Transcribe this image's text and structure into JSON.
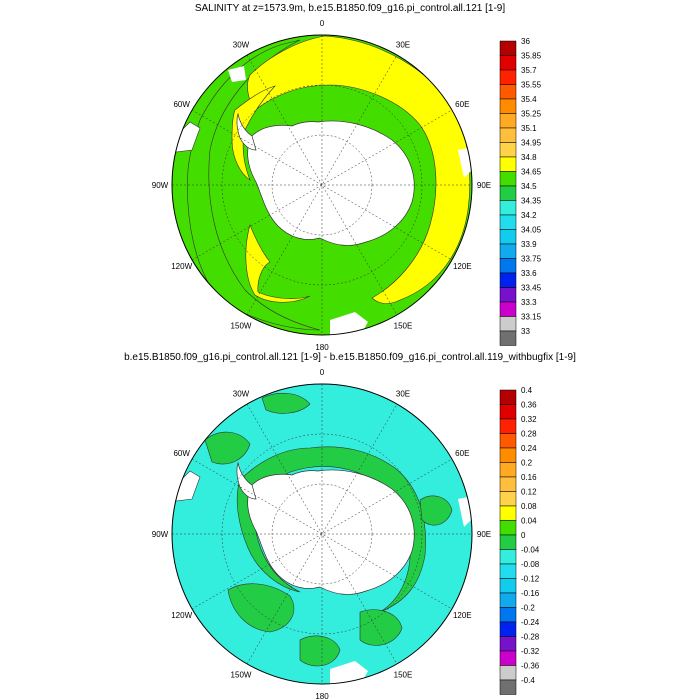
{
  "chart_data": [
    {
      "type": "heatmap",
      "projection": "polar-stereographic-south",
      "title": "SALINITY at z=1573.9m, b.e15.B1850.f09_g16.pi_control.all.121 [1-9]",
      "lon_labels": [
        "0",
        "30E",
        "60E",
        "90E",
        "120E",
        "150E",
        "180",
        "150W",
        "120W",
        "90W",
        "60W",
        "30W"
      ],
      "colorbar": {
        "labels": [
          "36",
          "35.85",
          "35.7",
          "35.55",
          "35.4",
          "35.25",
          "35.1",
          "34.95",
          "34.8",
          "34.65",
          "34.5",
          "34.35",
          "34.2",
          "34.05",
          "33.9",
          "33.75",
          "33.6",
          "33.45",
          "33.3",
          "33.15",
          "33"
        ],
        "colors": [
          "#b40000",
          "#e00000",
          "#ff2200",
          "#ff5a00",
          "#ff8c00",
          "#ffaa22",
          "#ffbe3c",
          "#ffd24a",
          "#ffff00",
          "#44dd00",
          "#22cc44",
          "#33eedd",
          "#22ddee",
          "#11ccee",
          "#11aaee",
          "#0077ee",
          "#0022ee",
          "#7711cc",
          "#cc00cc",
          "#cccccc",
          "#707070"
        ]
      },
      "dominant_fields": [
        {
          "value_range": [
            34.8,
            34.95
          ],
          "color": "#ffff00",
          "region": "Indian and Atlantic sectors, near-Antarctic band"
        },
        {
          "value_range": [
            34.65,
            34.8
          ],
          "color": "#44dd00",
          "region": "Pacific sector and outer ring"
        }
      ]
    },
    {
      "type": "heatmap",
      "projection": "polar-stereographic-south",
      "title": "b.e15.B1850.f09_g16.pi_control.all.121 [1-9] - b.e15.B1850.f09_g16.pi_control.all.119_withbugfix [1-9]",
      "lon_labels": [
        "0",
        "30E",
        "60E",
        "90E",
        "120E",
        "150E",
        "180",
        "150W",
        "120W",
        "90W",
        "60W",
        "30W"
      ],
      "colorbar": {
        "labels": [
          "0.4",
          "0.36",
          "0.32",
          "0.28",
          "0.24",
          "0.2",
          "0.16",
          "0.12",
          "0.08",
          "0.04",
          "0",
          "-0.04",
          "-0.08",
          "-0.12",
          "-0.16",
          "-0.2",
          "-0.24",
          "-0.28",
          "-0.32",
          "-0.36",
          "-0.4"
        ],
        "colors": [
          "#b40000",
          "#e00000",
          "#ff2200",
          "#ff5a00",
          "#ff8c00",
          "#ffaa22",
          "#ffbe3c",
          "#ffd24a",
          "#ffff00",
          "#44dd00",
          "#22cc44",
          "#33eedd",
          "#22ddee",
          "#11ccee",
          "#11aaee",
          "#0077ee",
          "#0022ee",
          "#7711cc",
          "#cc00cc",
          "#cccccc",
          "#707070"
        ]
      },
      "dominant_fields": [
        {
          "value_range": [
            -0.04,
            0
          ],
          "color": "#33eedd",
          "region": "most of the domain"
        },
        {
          "value_range": [
            0,
            0.04
          ],
          "color": "#22cc44",
          "region": "coastal Antarctic band and scattered patches"
        }
      ]
    }
  ]
}
